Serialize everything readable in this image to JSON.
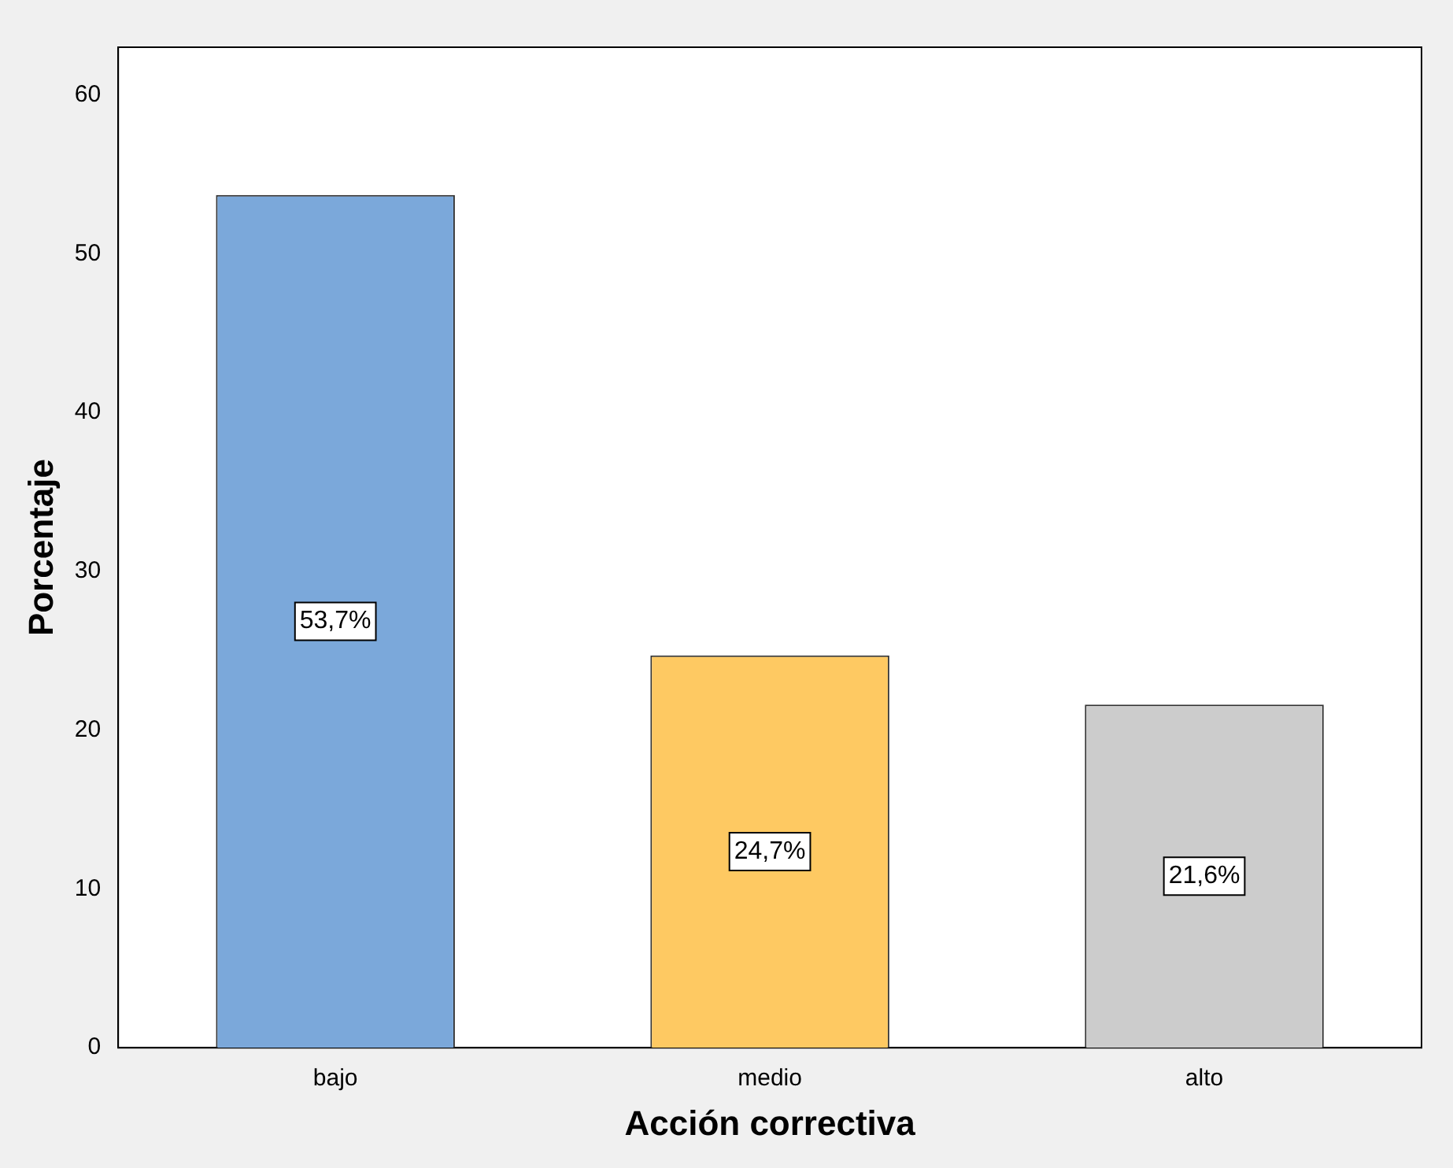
{
  "chart_data": {
    "type": "bar",
    "xlabel": "Acción correctiva",
    "ylabel": "Porcentaje",
    "categories": [
      "bajo",
      "medio",
      "alto"
    ],
    "values": [
      53.7,
      24.7,
      21.6
    ],
    "colors": [
      "#7ba8da",
      "#fec962",
      "#cccccc"
    ],
    "value_labels": [
      "53,7%",
      "24,7%",
      "21,6%"
    ],
    "ylim": [
      0,
      63
    ],
    "yticks": [
      0,
      10,
      20,
      30,
      40,
      50,
      60
    ],
    "grid": false,
    "legend": false
  }
}
